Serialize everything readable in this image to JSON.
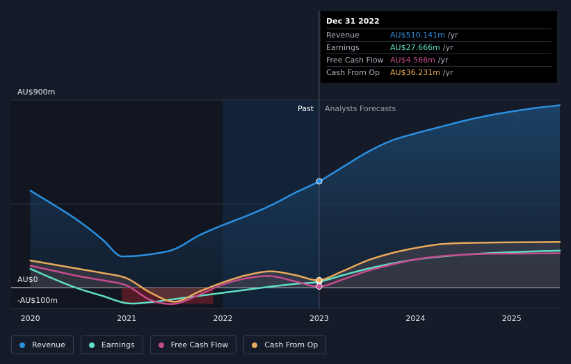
{
  "colors": {
    "revenue": "#2b8fe0",
    "earnings": "#5fe0c6",
    "free_cash_flow": "#c64b8f",
    "cash_from_op": "#e9a95a"
  },
  "tooltip": {
    "date": "Dec 31 2022",
    "rows": [
      {
        "name": "Revenue",
        "value": "AU$510.141m",
        "unit": "/yr"
      },
      {
        "name": "Earnings",
        "value": "AU$27.666m",
        "unit": "/yr"
      },
      {
        "name": "Free Cash Flow",
        "value": "AU$4.566m",
        "unit": "/yr"
      },
      {
        "name": "Cash From Op",
        "value": "AU$36.231m",
        "unit": "/yr"
      }
    ]
  },
  "legend": [
    {
      "label": "Revenue",
      "key": "revenue"
    },
    {
      "label": "Earnings",
      "key": "earnings"
    },
    {
      "label": "Free Cash Flow",
      "key": "free_cash_flow"
    },
    {
      "label": "Cash From Op",
      "key": "cash_from_op"
    }
  ],
  "chart_data": {
    "type": "line",
    "y_axis_labels": [
      "AU$900m",
      "AU$0",
      "-AU$100m"
    ],
    "ylim": [
      -100,
      900
    ],
    "x_ticks": [
      "2020",
      "2021",
      "2022",
      "2023",
      "2024",
      "2025"
    ],
    "x_tick_values": [
      2020,
      2021,
      2022,
      2023,
      2024,
      2025
    ],
    "xlim": [
      2019.8,
      2025.5
    ],
    "past_label": "Past",
    "forecast_label": "Analysts Forecasts",
    "past_end": 2023.0,
    "highlight_range": [
      2022.0,
      2023.0
    ],
    "grid": true,
    "series": [
      {
        "name": "Revenue",
        "key": "revenue",
        "x": [
          2020.0,
          2020.25,
          2020.5,
          2020.75,
          2020.9,
          2021.0,
          2021.25,
          2021.5,
          2021.75,
          2022.0,
          2022.25,
          2022.5,
          2022.75,
          2023.0,
          2023.25,
          2023.5,
          2023.75,
          2024.0,
          2024.25,
          2024.5,
          2024.75,
          2025.0,
          2025.25,
          2025.5
        ],
        "y": [
          465,
          395,
          320,
          230,
          160,
          150,
          160,
          185,
          250,
          300,
          345,
          395,
          455,
          510,
          580,
          650,
          705,
          740,
          770,
          800,
          825,
          845,
          862,
          875
        ]
      },
      {
        "name": "Earnings",
        "key": "earnings",
        "x": [
          2020.0,
          2020.25,
          2020.5,
          2020.75,
          2021.0,
          2021.25,
          2021.5,
          2021.75,
          2022.0,
          2022.25,
          2022.5,
          2022.75,
          2023.0,
          2023.25,
          2023.5,
          2023.75,
          2024.0,
          2024.25,
          2024.5,
          2024.75,
          2025.0,
          2025.25,
          2025.5
        ],
        "y": [
          90,
          40,
          -5,
          -40,
          -75,
          -70,
          -55,
          -40,
          -25,
          -10,
          5,
          18,
          28,
          60,
          90,
          115,
          135,
          148,
          158,
          165,
          170,
          174,
          177
        ]
      },
      {
        "name": "Free Cash Flow",
        "key": "free_cash_flow",
        "x": [
          2020.0,
          2020.25,
          2020.5,
          2020.75,
          2021.0,
          2021.25,
          2021.5,
          2021.75,
          2022.0,
          2022.25,
          2022.5,
          2022.75,
          2023.0,
          2023.25,
          2023.5,
          2023.75,
          2024.0,
          2024.25,
          2024.5,
          2024.75,
          2025.0,
          2025.25,
          2025.5
        ],
        "y": [
          105,
          80,
          55,
          35,
          10,
          -60,
          -78,
          -35,
          15,
          45,
          55,
          30,
          5,
          40,
          80,
          110,
          135,
          150,
          158,
          162,
          163,
          164,
          165
        ]
      },
      {
        "name": "Cash From Op",
        "key": "cash_from_op",
        "x": [
          2020.0,
          2020.25,
          2020.5,
          2020.75,
          2021.0,
          2021.25,
          2021.5,
          2021.75,
          2022.0,
          2022.25,
          2022.5,
          2022.75,
          2023.0,
          2023.25,
          2023.5,
          2023.75,
          2024.0,
          2024.25,
          2024.5,
          2024.75,
          2025.0,
          2025.25,
          2025.5
        ],
        "y": [
          130,
          110,
          90,
          70,
          45,
          -25,
          -68,
          -20,
          25,
          60,
          78,
          60,
          36,
          80,
          130,
          165,
          190,
          208,
          214,
          216,
          217,
          218,
          219
        ]
      }
    ]
  }
}
